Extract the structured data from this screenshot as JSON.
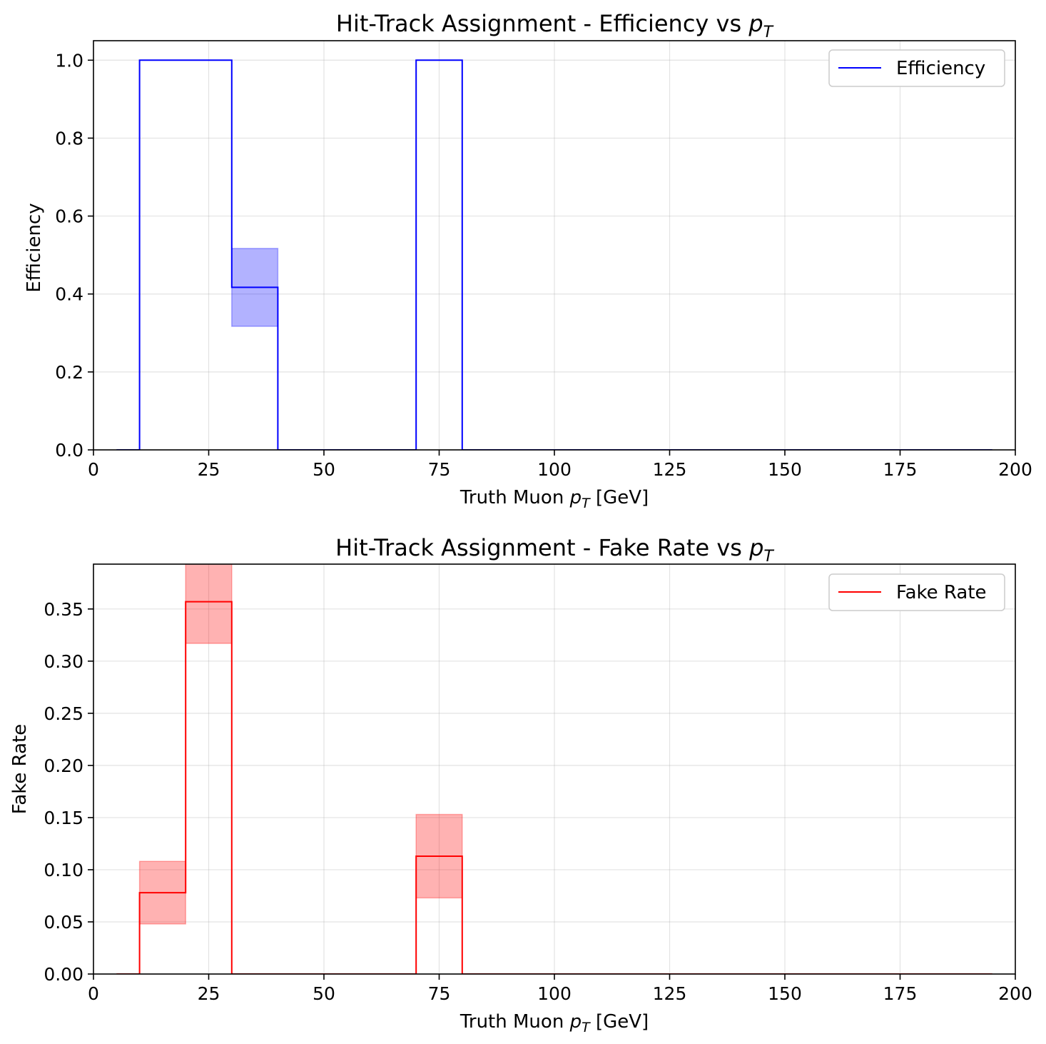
{
  "chart_data": [
    {
      "type": "histogram-step",
      "title": "Hit-Track Assignment - Efficiency vs ",
      "title_symbol": "p",
      "title_subscript": "T",
      "xlabel": "Truth Muon ",
      "xlabel_symbol": "p",
      "xlabel_subscript": "T",
      "xlabel_suffix": " [GeV]",
      "ylabel": "Efficiency",
      "xlim": [
        0,
        200
      ],
      "ylim": [
        0,
        1.05
      ],
      "xticks": [
        0,
        25,
        50,
        75,
        100,
        125,
        150,
        175,
        200
      ],
      "xtick_labels": [
        "0",
        "25",
        "50",
        "75",
        "100",
        "125",
        "150",
        "175",
        "200"
      ],
      "yticks": [
        0.0,
        0.2,
        0.4,
        0.6,
        0.8,
        1.0
      ],
      "ytick_labels": [
        "0.0",
        "0.2",
        "0.4",
        "0.6",
        "0.8",
        "1.0"
      ],
      "grid": true,
      "legend_position": "top-right",
      "series": [
        {
          "name": "Efficiency",
          "color": "#0000ff",
          "fill_color": "#0000ff",
          "bin_edges": [
            5,
            10,
            20,
            30,
            40,
            50,
            60,
            70,
            80,
            90,
            100,
            110,
            120,
            130,
            140,
            150,
            160,
            170,
            180,
            190,
            195
          ],
          "values": [
            0,
            1.0,
            1.0,
            0.417,
            0,
            0,
            0,
            1.0,
            0,
            0,
            0,
            0,
            0,
            0,
            0,
            0,
            0,
            0,
            0,
            0
          ],
          "errors": [
            {
              "x": [
                30,
                40
              ],
              "low": 0.317,
              "high": 0.517
            }
          ]
        }
      ]
    },
    {
      "type": "histogram-step",
      "title": "Hit-Track Assignment - Fake Rate vs ",
      "title_symbol": "p",
      "title_subscript": "T",
      "xlabel": "Truth Muon ",
      "xlabel_symbol": "p",
      "xlabel_subscript": "T",
      "xlabel_suffix": " [GeV]",
      "ylabel": "Fake Rate",
      "xlim": [
        0,
        200
      ],
      "ylim": [
        0,
        0.393
      ],
      "xticks": [
        0,
        25,
        50,
        75,
        100,
        125,
        150,
        175,
        200
      ],
      "xtick_labels": [
        "0",
        "25",
        "50",
        "75",
        "100",
        "125",
        "150",
        "175",
        "200"
      ],
      "yticks": [
        0.0,
        0.05,
        0.1,
        0.15,
        0.2,
        0.25,
        0.3,
        0.35
      ],
      "ytick_labels": [
        "0.00",
        "0.05",
        "0.10",
        "0.15",
        "0.20",
        "0.25",
        "0.30",
        "0.35"
      ],
      "grid": true,
      "legend_position": "top-right",
      "series": [
        {
          "name": "Fake Rate",
          "color": "#ff0000",
          "fill_color": "#ff0000",
          "bin_edges": [
            5,
            10,
            20,
            30,
            40,
            50,
            60,
            70,
            80,
            90,
            100,
            110,
            120,
            130,
            140,
            150,
            160,
            170,
            180,
            190,
            195
          ],
          "values": [
            0,
            0.078,
            0.357,
            0,
            0,
            0,
            0,
            0.113,
            0,
            0,
            0,
            0,
            0,
            0,
            0,
            0,
            0,
            0,
            0,
            0
          ],
          "errors": [
            {
              "x": [
                10,
                20
              ],
              "low": 0.048,
              "high": 0.108
            },
            {
              "x": [
                20,
                30
              ],
              "low": 0.317,
              "high": 0.397
            },
            {
              "x": [
                70,
                80
              ],
              "low": 0.073,
              "high": 0.153
            }
          ]
        }
      ]
    }
  ]
}
